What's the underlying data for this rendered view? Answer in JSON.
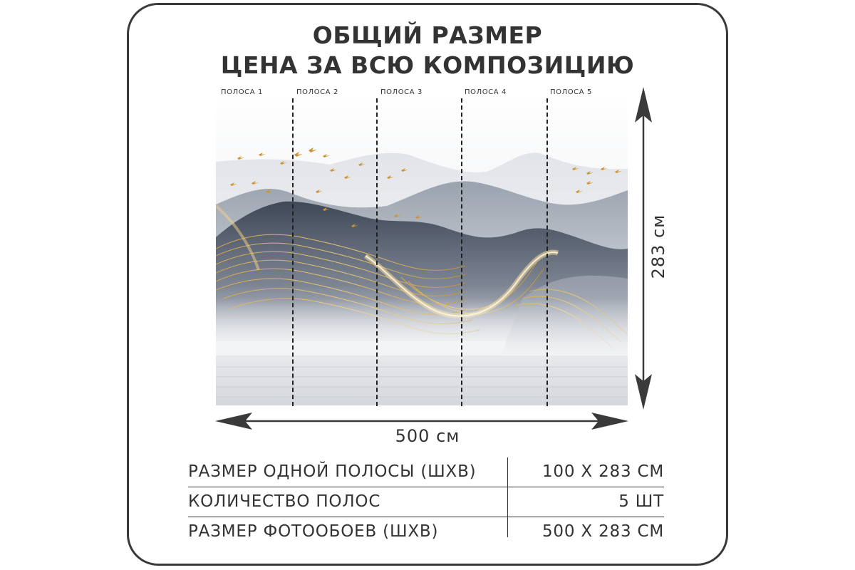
{
  "header": {
    "line1": "ОБЩИЙ РАЗМЕР",
    "line2": "ЦЕНА ЗА ВСЮ КОМПОЗИЦИЮ"
  },
  "strips": [
    {
      "label": "ПОЛОСА 1"
    },
    {
      "label": "ПОЛОСА 2"
    },
    {
      "label": "ПОЛОСА 3"
    },
    {
      "label": "ПОЛОСА 4"
    },
    {
      "label": "ПОЛОСА 5"
    }
  ],
  "dimensions": {
    "width": "500 см",
    "height": "283 см"
  },
  "specs": [
    {
      "label": "РАЗМЕР ОДНОЙ ПОЛОСЫ (ШХВ)",
      "value": "100 Х 283 СМ"
    },
    {
      "label": "КОЛИЧЕСТВО ПОЛОС",
      "value": "5 ШТ"
    },
    {
      "label": "РАЗМЕР ФОТООБОЕВ (ШХВ)",
      "value": "500 Х 283 СМ"
    }
  ],
  "colors": {
    "text": "#333333",
    "frame": "#3a3a3a",
    "gold": "#d9a640",
    "mountain_dark": "#4e5766",
    "mountain_light": "#b6bcc6"
  }
}
